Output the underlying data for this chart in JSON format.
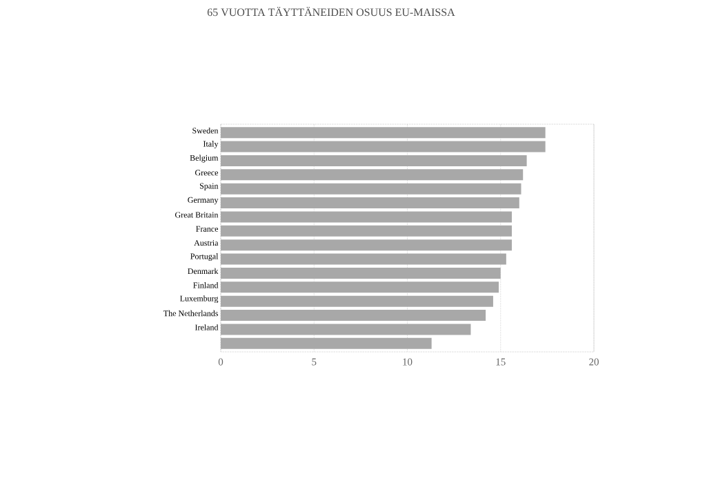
{
  "chart_data": {
    "type": "bar",
    "orientation": "horizontal",
    "title": "65 VUOTTA TÄYTTÄNEIDEN OSUUS EU-MAISSA",
    "categories": [
      "Sweden",
      "Italy",
      "Belgium",
      "Greece",
      "Spain",
      "Germany",
      "Great Britain",
      "France",
      "Austria",
      "Portugal",
      "Denmark",
      "Finland",
      "Luxemburg",
      "The Netherlands",
      "Ireland",
      null
    ],
    "values": [
      17.4,
      17.4,
      16.4,
      16.2,
      16.1,
      16.0,
      15.6,
      15.6,
      15.6,
      15.3,
      15.0,
      14.9,
      14.6,
      14.2,
      13.4,
      11.3
    ],
    "color": "#a8a8a8",
    "xlim": [
      0,
      20
    ],
    "xticks": [
      0,
      5,
      10,
      15,
      20
    ],
    "grid": "x"
  }
}
